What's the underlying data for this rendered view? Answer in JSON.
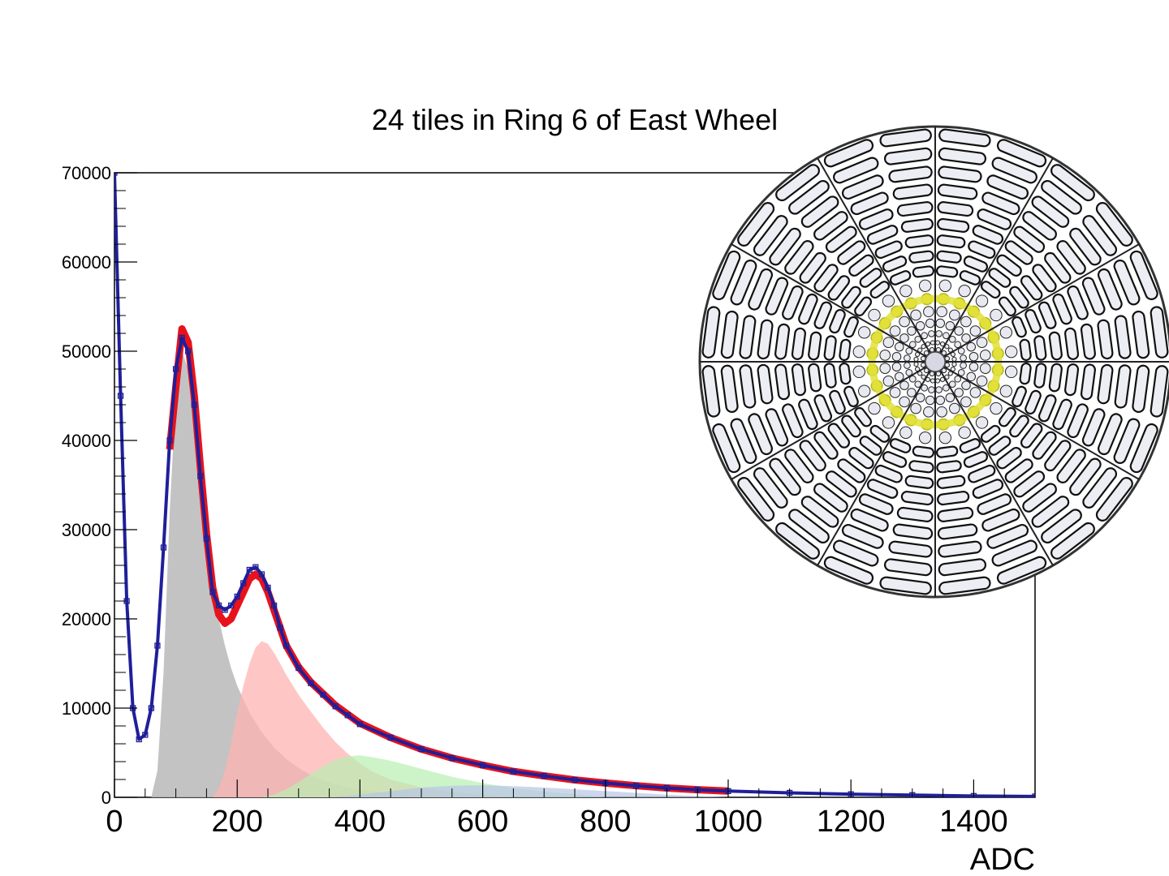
{
  "chart_data": {
    "type": "area",
    "title": "24 tiles in Ring 6 of East Wheel",
    "xlabel": "ADC",
    "ylabel": "",
    "xlim": [
      0,
      1500
    ],
    "ylim": [
      0,
      70000
    ],
    "x_ticks": [
      0,
      200,
      400,
      600,
      800,
      1000,
      1200,
      1400
    ],
    "y_ticks": [
      0,
      10000,
      20000,
      30000,
      40000,
      50000,
      60000,
      70000
    ],
    "grid": false,
    "legend": "none",
    "colors": {
      "data": "#1f1f9a",
      "fit": "#e8121b",
      "peak1": "#bdbdbd",
      "peak2": "#ffb3b3",
      "peak3": "#b8f0b0",
      "peak4": "#b8c4e6",
      "selected_ring": "#e0e03a"
    },
    "series": [
      {
        "role": "data-histogram",
        "x": [
          0,
          10,
          20,
          30,
          40,
          50,
          60,
          70,
          80,
          90,
          100,
          110,
          120,
          130,
          140,
          150,
          160,
          170,
          180,
          190,
          200,
          210,
          220,
          230,
          240,
          250,
          260,
          270,
          280,
          300,
          320,
          340,
          360,
          380,
          400,
          450,
          500,
          550,
          600,
          650,
          700,
          750,
          800,
          850,
          900,
          950,
          1000,
          1100,
          1200,
          1300,
          1400,
          1500
        ],
        "values": [
          70000,
          45000,
          22000,
          10000,
          6500,
          7000,
          10000,
          17000,
          28000,
          40000,
          48000,
          51500,
          50000,
          44000,
          36000,
          29000,
          23000,
          21500,
          21000,
          21500,
          22500,
          24000,
          25500,
          25800,
          25000,
          23500,
          21500,
          19000,
          17000,
          14500,
          12800,
          11500,
          10200,
          9200,
          8200,
          6700,
          5400,
          4400,
          3600,
          2900,
          2400,
          1950,
          1600,
          1300,
          1050,
          850,
          700,
          500,
          350,
          250,
          150,
          100
        ]
      },
      {
        "role": "fit",
        "x": [
          90,
          100,
          110,
          120,
          130,
          140,
          150,
          160,
          170,
          180,
          190,
          200,
          210,
          220,
          230,
          240,
          250,
          260,
          270,
          280,
          300,
          320,
          340,
          360,
          380,
          400,
          450,
          500,
          550,
          600,
          650,
          700,
          750,
          800,
          850,
          900,
          950,
          1000
        ],
        "values": [
          39000,
          46000,
          52500,
          51000,
          45000,
          37000,
          29500,
          23500,
          20500,
          19500,
          20000,
          21500,
          23000,
          24500,
          25000,
          24500,
          23000,
          21000,
          19000,
          17000,
          14600,
          12900,
          11600,
          10300,
          9300,
          8300,
          6700,
          5400,
          4400,
          3600,
          2900,
          2400,
          1950,
          1600,
          1300,
          1050,
          850,
          700
        ]
      },
      {
        "role": "peak-1",
        "x": [
          60,
          70,
          80,
          90,
          100,
          110,
          120,
          130,
          140,
          150,
          160,
          170,
          180,
          190,
          200,
          220,
          240,
          260,
          280,
          300,
          320,
          340,
          360,
          380,
          400,
          450,
          500,
          550,
          600
        ],
        "values": [
          0,
          3000,
          14000,
          32000,
          45000,
          50000,
          48000,
          42000,
          35500,
          29000,
          24000,
          20000,
          17000,
          14500,
          12500,
          9500,
          7300,
          5600,
          4300,
          3300,
          2500,
          1900,
          1450,
          1100,
          850,
          450,
          250,
          120,
          0
        ]
      },
      {
        "role": "peak-2",
        "x": [
          160,
          170,
          180,
          190,
          200,
          210,
          220,
          230,
          240,
          250,
          260,
          270,
          280,
          300,
          320,
          340,
          360,
          380,
          400,
          420,
          450,
          500,
          550,
          600,
          650
        ],
        "values": [
          0,
          1000,
          3000,
          6000,
          9500,
          12500,
          15000,
          16800,
          17500,
          17200,
          16200,
          15000,
          13700,
          11500,
          9600,
          7800,
          6200,
          4900,
          3800,
          2900,
          2000,
          1100,
          600,
          300,
          0
        ]
      },
      {
        "role": "peak-3",
        "x": [
          240,
          260,
          280,
          300,
          320,
          340,
          360,
          380,
          400,
          420,
          450,
          500,
          550,
          600,
          650,
          700,
          750,
          800
        ],
        "values": [
          0,
          300,
          900,
          1700,
          2600,
          3500,
          4200,
          4600,
          4700,
          4500,
          4100,
          3200,
          2300,
          1600,
          1050,
          650,
          350,
          0
        ]
      },
      {
        "role": "peak-4",
        "x": [
          350,
          400,
          450,
          500,
          550,
          600,
          650,
          700,
          750,
          800,
          850,
          900,
          950,
          1000
        ],
        "values": [
          0,
          300,
          700,
          1100,
          1300,
          1350,
          1250,
          1100,
          900,
          700,
          500,
          300,
          150,
          0
        ]
      }
    ],
    "inset": {
      "depicts": "east-wheel-tile-layout",
      "sectors": 12,
      "rings": 16,
      "highlighted_ring": 6
    }
  }
}
